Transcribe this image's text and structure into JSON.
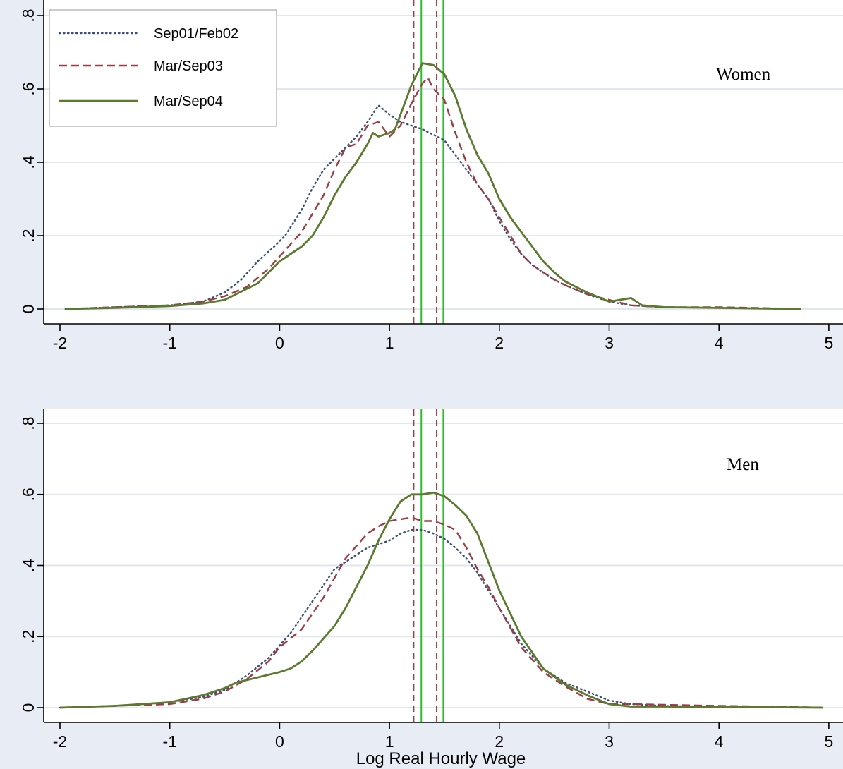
{
  "chart_data": [
    {
      "type": "line",
      "panel_label": "Women",
      "xlabel": "",
      "ylabel": "",
      "xlim": [
        -2.05,
        5.1
      ],
      "ylim": [
        -0.035,
        0.8
      ],
      "xticks": [
        -2,
        -1,
        0,
        1,
        2,
        3,
        4,
        5
      ],
      "xtick_labels": [
        "-2",
        "-1",
        "0",
        "1",
        "2",
        "3",
        "4",
        "5"
      ],
      "yticks": [
        0,
        0.2,
        0.4,
        0.6,
        0.8
      ],
      "ytick_labels": [
        "0",
        ".2",
        ".4",
        ".6",
        ".8"
      ],
      "grid": "horizontal",
      "legend_placement": "top-left",
      "vlines": [
        {
          "x": 1.22,
          "style": "dashed",
          "color": "#9c3c44"
        },
        {
          "x": 1.43,
          "style": "dashed",
          "color": "#9c3c44"
        },
        {
          "x": 1.29,
          "style": "solid",
          "color": "#2fbd2f"
        },
        {
          "x": 1.49,
          "style": "solid",
          "color": "#2fbd2f"
        }
      ],
      "series": [
        {
          "name": "Sep01/Feb02",
          "style": "dotted",
          "color": "#3a4f7a",
          "x": [
            -1.95,
            -1.5,
            -1.0,
            -0.7,
            -0.5,
            -0.35,
            -0.2,
            -0.05,
            0.05,
            0.2,
            0.3,
            0.4,
            0.5,
            0.6,
            0.7,
            0.8,
            0.9,
            1.0,
            1.1,
            1.2,
            1.3,
            1.4,
            1.5,
            1.6,
            1.7,
            1.8,
            1.9,
            2.0,
            2.1,
            2.2,
            2.3,
            2.4,
            2.5,
            2.6,
            2.8,
            3.0,
            3.2,
            3.5,
            4.0,
            4.5,
            4.75
          ],
          "y": [
            0.0,
            0.005,
            0.01,
            0.02,
            0.045,
            0.08,
            0.13,
            0.17,
            0.2,
            0.27,
            0.33,
            0.38,
            0.41,
            0.44,
            0.47,
            0.51,
            0.555,
            0.53,
            0.51,
            0.5,
            0.49,
            0.475,
            0.46,
            0.42,
            0.38,
            0.34,
            0.3,
            0.24,
            0.19,
            0.15,
            0.12,
            0.1,
            0.08,
            0.065,
            0.04,
            0.02,
            0.01,
            0.005,
            0.003,
            0.001,
            0.0
          ]
        },
        {
          "name": "Mar/Sep03",
          "style": "dashed",
          "color": "#9c3c44",
          "x": [
            -1.95,
            -1.5,
            -1.0,
            -0.7,
            -0.5,
            -0.3,
            -0.1,
            0.05,
            0.2,
            0.3,
            0.4,
            0.5,
            0.6,
            0.7,
            0.8,
            0.9,
            0.95,
            1.0,
            1.1,
            1.2,
            1.3,
            1.35,
            1.4,
            1.5,
            1.6,
            1.7,
            1.8,
            1.9,
            2.0,
            2.1,
            2.2,
            2.3,
            2.4,
            2.5,
            2.6,
            2.8,
            3.0,
            3.2,
            3.5,
            4.0,
            4.5,
            4.75
          ],
          "y": [
            0.0,
            0.005,
            0.01,
            0.02,
            0.035,
            0.06,
            0.11,
            0.16,
            0.21,
            0.26,
            0.31,
            0.38,
            0.44,
            0.45,
            0.5,
            0.51,
            0.49,
            0.47,
            0.5,
            0.56,
            0.615,
            0.63,
            0.6,
            0.57,
            0.48,
            0.4,
            0.34,
            0.3,
            0.25,
            0.2,
            0.15,
            0.12,
            0.1,
            0.08,
            0.065,
            0.04,
            0.025,
            0.01,
            0.005,
            0.005,
            0.002,
            0.0
          ]
        },
        {
          "name": "Mar/Sep04",
          "style": "solid",
          "color": "#5a7a2e",
          "x": [
            -1.95,
            -1.5,
            -1.0,
            -0.7,
            -0.5,
            -0.4,
            -0.2,
            0.0,
            0.2,
            0.3,
            0.4,
            0.5,
            0.6,
            0.7,
            0.8,
            0.85,
            0.9,
            1.0,
            1.05,
            1.1,
            1.2,
            1.3,
            1.4,
            1.5,
            1.6,
            1.7,
            1.8,
            1.9,
            2.0,
            2.1,
            2.2,
            2.3,
            2.4,
            2.5,
            2.6,
            2.8,
            3.0,
            3.1,
            3.2,
            3.3,
            3.5,
            4.0,
            4.5,
            4.75
          ],
          "y": [
            0.0,
            0.003,
            0.008,
            0.015,
            0.025,
            0.04,
            0.07,
            0.13,
            0.17,
            0.2,
            0.25,
            0.31,
            0.36,
            0.4,
            0.45,
            0.48,
            0.47,
            0.48,
            0.49,
            0.53,
            0.61,
            0.67,
            0.665,
            0.64,
            0.58,
            0.49,
            0.42,
            0.37,
            0.3,
            0.25,
            0.21,
            0.17,
            0.13,
            0.1,
            0.075,
            0.045,
            0.02,
            0.025,
            0.03,
            0.01,
            0.005,
            0.003,
            0.001,
            0.0
          ]
        }
      ]
    },
    {
      "type": "line",
      "panel_label": "Men",
      "xlabel": "Log Real Hourly Wage",
      "ylabel": "",
      "xlim": [
        -2.05,
        5.1
      ],
      "ylim": [
        -0.035,
        0.8
      ],
      "xticks": [
        -2,
        -1,
        0,
        1,
        2,
        3,
        4,
        5
      ],
      "xtick_labels": [
        "-2",
        "-1",
        "0",
        "1",
        "2",
        "3",
        "4",
        "5"
      ],
      "yticks": [
        0,
        0.2,
        0.4,
        0.6,
        0.8
      ],
      "ytick_labels": [
        "0",
        ".2",
        ".4",
        ".6",
        ".8"
      ],
      "grid": "horizontal",
      "vlines": [
        {
          "x": 1.22,
          "style": "dashed",
          "color": "#9c3c44"
        },
        {
          "x": 1.43,
          "style": "dashed",
          "color": "#9c3c44"
        },
        {
          "x": 1.29,
          "style": "solid",
          "color": "#2fbd2f"
        },
        {
          "x": 1.49,
          "style": "solid",
          "color": "#2fbd2f"
        }
      ],
      "series": [
        {
          "name": "Sep01/Feb02",
          "style": "dotted",
          "color": "#3a4f7a",
          "x": [
            -2.0,
            -1.5,
            -1.0,
            -0.7,
            -0.5,
            -0.3,
            -0.1,
            0.1,
            0.3,
            0.5,
            0.6,
            0.7,
            0.8,
            0.9,
            1.0,
            1.1,
            1.2,
            1.3,
            1.4,
            1.5,
            1.6,
            1.7,
            1.8,
            1.9,
            2.0,
            2.2,
            2.4,
            2.6,
            2.8,
            3.0,
            3.2,
            3.5,
            4.0,
            4.5,
            4.95
          ],
          "y": [
            0.0,
            0.005,
            0.015,
            0.03,
            0.05,
            0.09,
            0.14,
            0.21,
            0.3,
            0.39,
            0.41,
            0.43,
            0.45,
            0.46,
            0.47,
            0.49,
            0.5,
            0.5,
            0.49,
            0.475,
            0.45,
            0.42,
            0.38,
            0.33,
            0.28,
            0.18,
            0.11,
            0.07,
            0.045,
            0.02,
            0.01,
            0.005,
            0.003,
            0.002,
            0.0
          ]
        },
        {
          "name": "Mar/Sep03",
          "style": "dashed",
          "color": "#9c3c44",
          "x": [
            -2.0,
            -1.5,
            -1.0,
            -0.7,
            -0.5,
            -0.3,
            -0.1,
            0.0,
            0.2,
            0.4,
            0.6,
            0.8,
            0.9,
            1.0,
            1.1,
            1.2,
            1.3,
            1.4,
            1.5,
            1.6,
            1.7,
            1.8,
            1.9,
            2.0,
            2.2,
            2.4,
            2.6,
            2.8,
            3.0,
            3.2,
            3.5,
            4.0,
            4.5,
            4.95
          ],
          "y": [
            0.0,
            0.005,
            0.01,
            0.025,
            0.045,
            0.08,
            0.13,
            0.17,
            0.22,
            0.31,
            0.42,
            0.49,
            0.51,
            0.525,
            0.53,
            0.535,
            0.525,
            0.525,
            0.515,
            0.5,
            0.45,
            0.39,
            0.34,
            0.28,
            0.17,
            0.1,
            0.06,
            0.025,
            0.01,
            0.01,
            0.008,
            0.005,
            0.003,
            0.0
          ]
        },
        {
          "name": "Mar/Sep04",
          "style": "solid",
          "color": "#5a7a2e",
          "x": [
            -2.0,
            -1.5,
            -1.0,
            -0.7,
            -0.5,
            -0.4,
            -0.2,
            0.0,
            0.1,
            0.2,
            0.3,
            0.5,
            0.6,
            0.7,
            0.8,
            0.9,
            1.0,
            1.1,
            1.2,
            1.3,
            1.4,
            1.5,
            1.6,
            1.7,
            1.8,
            1.9,
            2.0,
            2.2,
            2.4,
            2.6,
            2.8,
            3.0,
            3.2,
            3.5,
            4.0,
            4.5,
            4.95
          ],
          "y": [
            0.0,
            0.005,
            0.015,
            0.035,
            0.055,
            0.07,
            0.085,
            0.1,
            0.11,
            0.13,
            0.16,
            0.23,
            0.28,
            0.34,
            0.4,
            0.47,
            0.53,
            0.58,
            0.6,
            0.6,
            0.605,
            0.595,
            0.57,
            0.54,
            0.49,
            0.41,
            0.33,
            0.2,
            0.11,
            0.065,
            0.035,
            0.01,
            0.003,
            0.003,
            0.002,
            0.001,
            0.0
          ]
        }
      ]
    }
  ]
}
